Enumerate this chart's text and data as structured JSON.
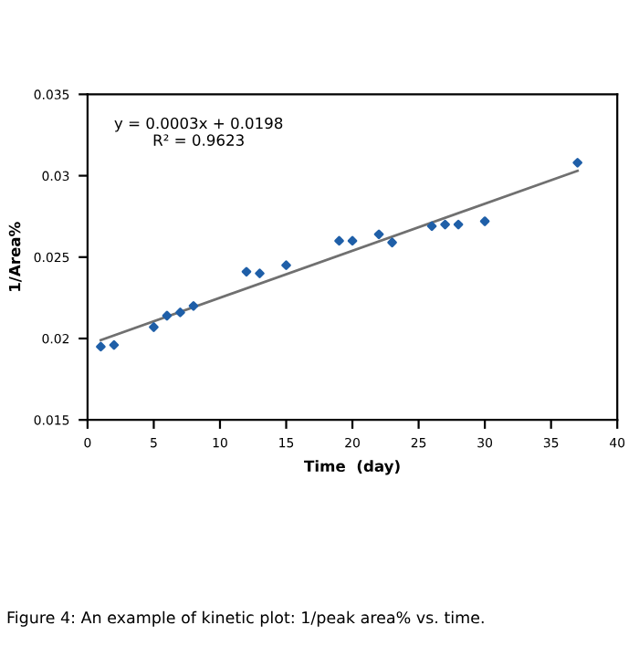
{
  "chart_data": {
    "type": "scatter",
    "xlabel": "Time  (day)",
    "ylabel": "1/Area%",
    "annotations": [
      "y = 0.0003x + 0.0198\nR² = 0.9623",
      "Figure 4: An example of kinetic plot: 1/peak area% vs. time."
    ],
    "series": [
      {
        "color": "#1f5fa8",
        "marker": "diamond",
        "x": [
          1,
          2,
          5,
          6,
          7,
          8,
          12,
          13,
          15,
          19,
          20,
          22,
          23,
          26,
          27,
          28,
          30,
          37
        ],
        "values": [
          0.0195,
          0.0196,
          0.0207,
          0.0214,
          0.0216,
          0.022,
          0.0241,
          0.024,
          0.0245,
          0.026,
          0.026,
          0.0264,
          0.0259,
          0.0269,
          0.027,
          0.027,
          0.0272,
          0.0308
        ]
      },
      {
        "type": "line",
        "color": "#707070",
        "marker": "none",
        "x": [
          1,
          37
        ],
        "values": [
          0.0199,
          0.0303
        ]
      }
    ],
    "xlim": [
      0,
      40
    ],
    "xticks": [
      0,
      5,
      10,
      15,
      20,
      25,
      30,
      35,
      40
    ],
    "ylim": [
      0.015,
      0.035
    ],
    "yticks": [
      0.015,
      0.02,
      0.025,
      0.03,
      0.035
    ],
    "grid": false,
    "legend": false
  }
}
